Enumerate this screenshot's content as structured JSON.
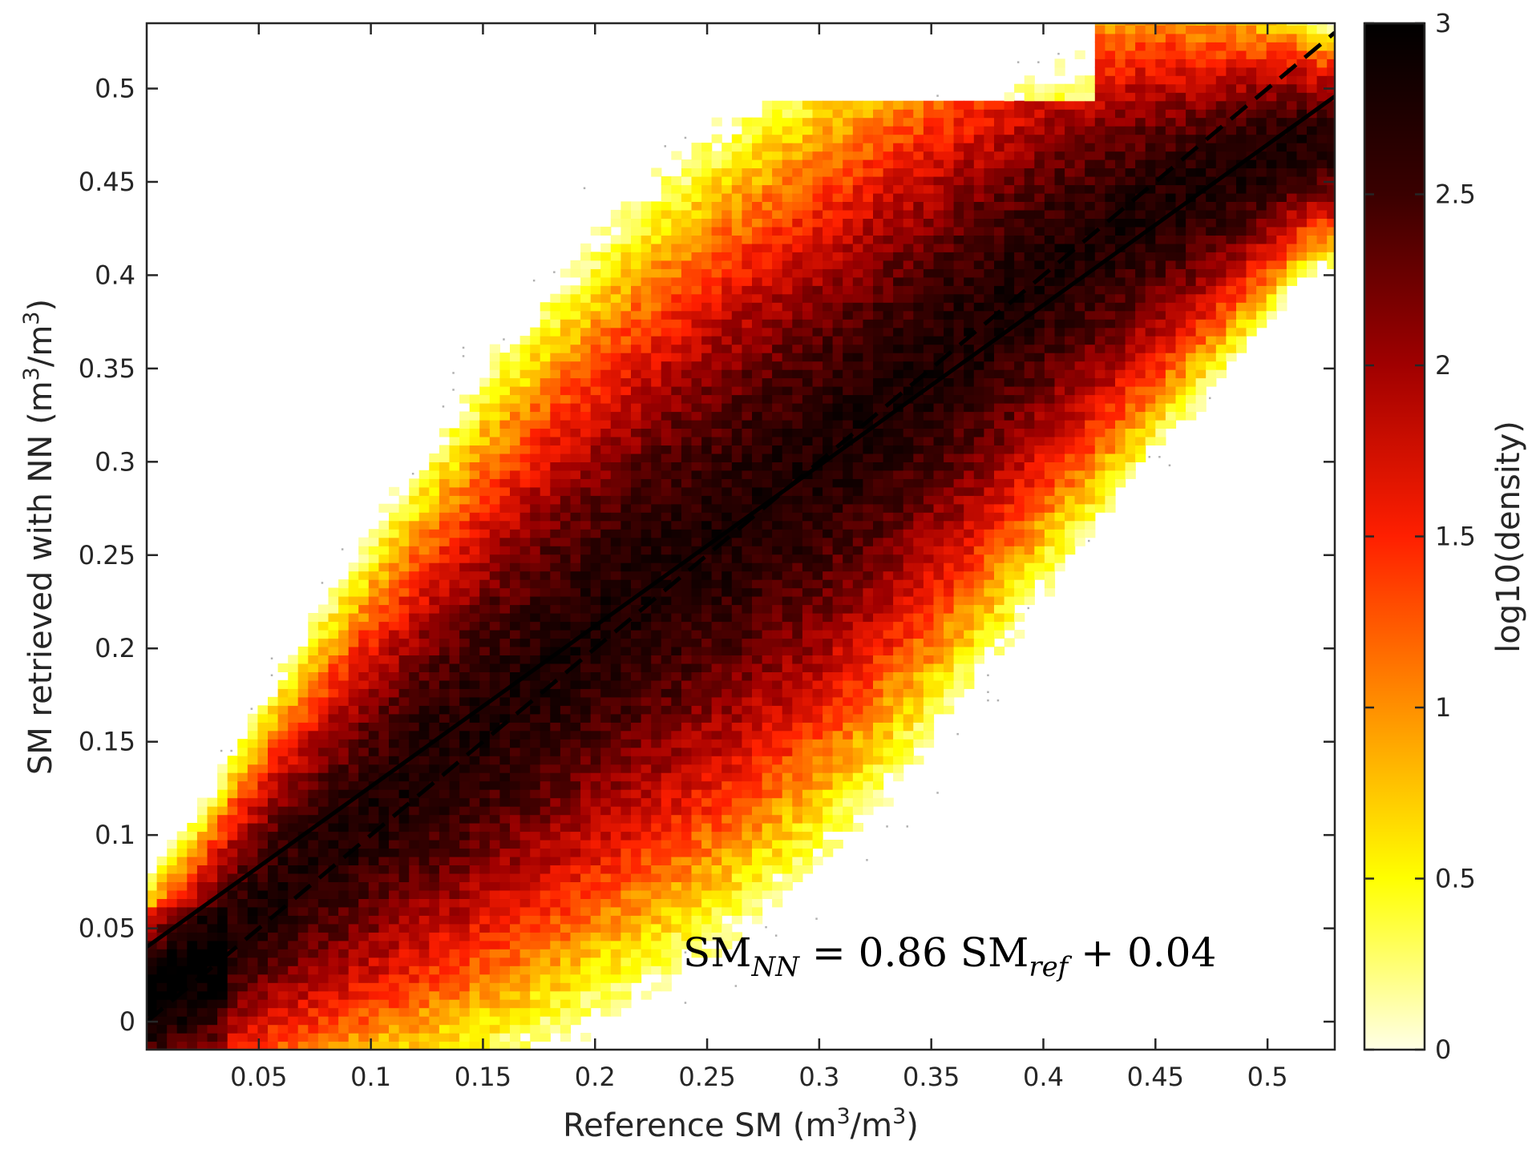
{
  "chart_data": {
    "type": "heatmap",
    "subtype": "2d-density-scatter",
    "xlabel": "Reference SM (m³/m³)",
    "ylabel": "SM retrieved with NN (m³/m³)",
    "xlabel_parts": {
      "pre": "Reference SM (m",
      "sup1": "3",
      "mid": "/m",
      "sup2": "3",
      "post": ")"
    },
    "ylabel_parts": {
      "pre": "SM retrieved with NN (m",
      "sup1": "3",
      "mid": "/m",
      "sup2": "3",
      "post": ")"
    },
    "xlim": [
      0.0,
      0.53
    ],
    "ylim": [
      -0.015,
      0.535
    ],
    "xticks": [
      0.05,
      0.1,
      0.15,
      0.2,
      0.25,
      0.3,
      0.35,
      0.4,
      0.45,
      0.5
    ],
    "xtick_labels": [
      "0.05",
      "0.1",
      "0.15",
      "0.2",
      "0.25",
      "0.3",
      "0.35",
      "0.4",
      "0.45",
      "0.5"
    ],
    "yticks": [
      0,
      0.05,
      0.1,
      0.15,
      0.2,
      0.25,
      0.3,
      0.35,
      0.4,
      0.45,
      0.5
    ],
    "ytick_labels": [
      "0",
      "0.05",
      "0.1",
      "0.15",
      "0.2",
      "0.25",
      "0.3",
      "0.35",
      "0.4",
      "0.45",
      "0.5"
    ],
    "colorbar": {
      "label": "log10(density)",
      "range": [
        0,
        3
      ],
      "ticks": [
        0,
        0.5,
        1,
        1.5,
        2,
        2.5,
        3
      ],
      "tick_labels": [
        "0",
        "0.5",
        "1",
        "1.5",
        "2",
        "2.5",
        "3"
      ],
      "colormap": [
        "#ffffe6",
        "#ffff00",
        "#ff9000",
        "#ff1f00",
        "#a00000",
        "#3a0000",
        "#000000"
      ]
    },
    "density_ridge": {
      "x": [
        0.0,
        0.025,
        0.05,
        0.1,
        0.15,
        0.2,
        0.25,
        0.3,
        0.35,
        0.4,
        0.45,
        0.515
      ],
      "y": [
        0.01,
        0.03,
        0.06,
        0.11,
        0.16,
        0.21,
        0.255,
        0.3,
        0.35,
        0.4,
        0.435,
        0.47
      ]
    },
    "density_bounds": {
      "x_max": 0.515,
      "y_max": 0.49
    },
    "lines": [
      {
        "name": "regression",
        "style": "solid",
        "slope": 0.86,
        "intercept": 0.04,
        "color": "#000000"
      },
      {
        "name": "1:1",
        "style": "dashed",
        "slope": 1.0,
        "intercept": 0.0,
        "color": "#000000"
      }
    ],
    "annotation": {
      "lhs": "SM",
      "lhs_sub": "NN",
      "mid": " = 0.86 SM",
      "rhs_sub": "ref",
      "rhs": " + 0.04",
      "x": 0.24,
      "y": 0.035
    },
    "grid": false
  }
}
